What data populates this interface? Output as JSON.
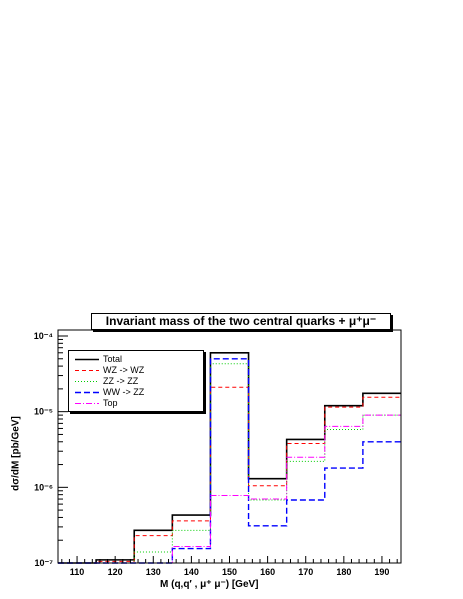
{
  "chart_data": {
    "type": "histogram",
    "title": "Invariant mass of the two central quarks + μ⁺μ⁻",
    "xlabel": "M (q,q′ , μ⁺ μ⁻)  [GeV]",
    "ylabel": "dσ/dM  [pb/GeV]",
    "xlim": [
      105,
      195
    ],
    "ylim": [
      1e-07,
      0.00012
    ],
    "yscale": "log",
    "x_ticks": [
      110,
      120,
      130,
      140,
      150,
      160,
      170,
      180,
      190
    ],
    "y_ticks": [
      {
        "value": 1e-07,
        "label": "10⁻⁷"
      },
      {
        "value": 1e-06,
        "label": "10⁻⁶"
      },
      {
        "value": 1e-05,
        "label": "10⁻⁵"
      },
      {
        "value": 0.0001,
        "label": "10⁻⁴"
      }
    ],
    "bin_edges": [
      105,
      115,
      125,
      135,
      145,
      155,
      165,
      175,
      185,
      195
    ],
    "legend_position": "top-left",
    "series": [
      {
        "name": "Total",
        "color": "#000000",
        "dash": "",
        "width": 1.6,
        "values": [
          1e-07,
          1.1e-07,
          2.7e-07,
          4.3e-07,
          6e-05,
          1.3e-06,
          4.3e-06,
          1.2e-05,
          1.75e-05
        ]
      },
      {
        "name": "WZ -> WZ",
        "color": "#ff0000",
        "dash": "4,3",
        "width": 1,
        "values": [
          1e-07,
          1.05e-07,
          2.3e-07,
          3.6e-07,
          2.1e-05,
          1.05e-06,
          3.8e-06,
          1.15e-05,
          1.55e-05
        ]
      },
      {
        "name": "ZZ -> ZZ",
        "color": "#00cc00",
        "dash": "1,2",
        "width": 1,
        "values": [
          1e-07,
          1e-07,
          1.4e-07,
          2.7e-07,
          4.3e-05,
          6.8e-07,
          2.2e-06,
          5.8e-06,
          9e-06
        ]
      },
      {
        "name": "WW -> ZZ",
        "color": "#0000ff",
        "dash": "6,3",
        "width": 1.4,
        "values": [
          1e-07,
          1e-07,
          1e-07,
          1.55e-07,
          5e-05,
          3.1e-07,
          6.8e-07,
          1.8e-06,
          4e-06
        ]
      },
      {
        "name": "Top",
        "color": "#ff00ff",
        "dash": "6,2,1,2",
        "width": 1,
        "values": [
          1e-07,
          1e-07,
          1e-07,
          1.65e-07,
          7.8e-07,
          7e-07,
          2.5e-06,
          6.4e-06,
          9e-06
        ]
      }
    ]
  }
}
